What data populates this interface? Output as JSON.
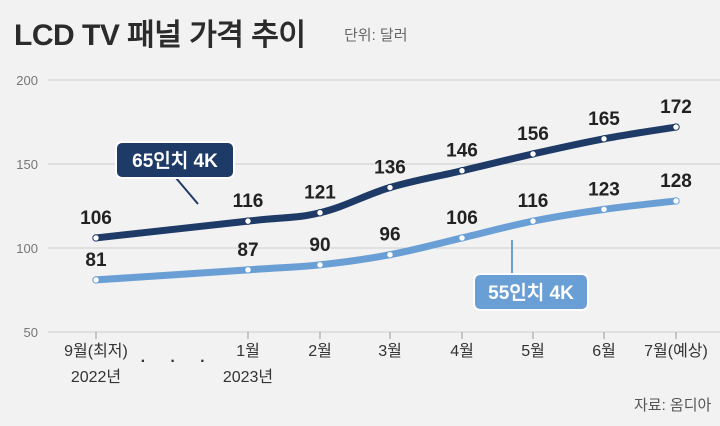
{
  "header": {
    "title": "LCD TV 패널 가격 추이",
    "unit": "단위: 달러"
  },
  "source": "자료: 옴디아",
  "colors": {
    "series_65": "#1e3a66",
    "series_55": "#6a9fd6",
    "grid": "#cfcfcf",
    "background": "#f2f2f2"
  },
  "chart_data": {
    "type": "line",
    "title": "LCD TV 패널 가격 추이",
    "ylabel": "단위: 달러",
    "ylim": [
      50,
      200
    ],
    "yticks": [
      50,
      100,
      150,
      200
    ],
    "grid": true,
    "x_labels": [
      {
        "line1": "9월(최저)",
        "line2": "2022년"
      },
      {
        "line1": "· · ·",
        "line2": ""
      },
      {
        "line1": "1월",
        "line2": "2023년"
      },
      {
        "line1": "2월",
        "line2": ""
      },
      {
        "line1": "3월",
        "line2": ""
      },
      {
        "line1": "4월",
        "line2": ""
      },
      {
        "line1": "5월",
        "line2": ""
      },
      {
        "line1": "6월",
        "line2": ""
      },
      {
        "line1": "7월(예상)",
        "line2": ""
      }
    ],
    "x": [
      "9월(최저) 2022년",
      "1월 2023년",
      "2월",
      "3월",
      "4월",
      "5월",
      "6월",
      "7월(예상)"
    ],
    "series": [
      {
        "name": "65인치 4K",
        "values": [
          106,
          116,
          121,
          136,
          146,
          156,
          165,
          172
        ]
      },
      {
        "name": "55인치 4K",
        "values": [
          81,
          87,
          90,
          96,
          106,
          116,
          123,
          128
        ]
      }
    ]
  }
}
